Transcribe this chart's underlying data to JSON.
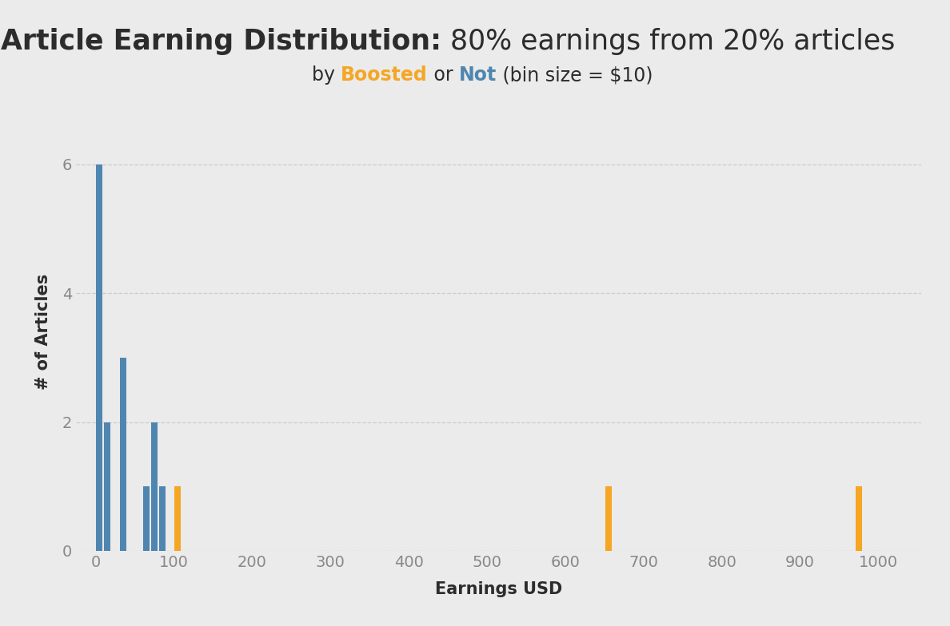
{
  "title_bold": "Article Earning Distribution:",
  "title_normal": " 80% earnings from 20% articles",
  "subtitle_prefix": "by ",
  "subtitle_boosted": "Boosted",
  "subtitle_or": " or ",
  "subtitle_not": "Not",
  "subtitle_suffix": " (bin size = $10)",
  "xlabel": "Earnings USD",
  "ylabel": "# of Articles",
  "background_color": "#ebebeb",
  "bar_color_blue": "#4f86b0",
  "bar_color_orange": "#f5a623",
  "text_color": "#2c2c2c",
  "grid_color": "#cccccc",
  "blue_bars": [
    {
      "x": 0,
      "height": 6
    },
    {
      "x": 10,
      "height": 2
    },
    {
      "x": 30,
      "height": 3
    },
    {
      "x": 60,
      "height": 1
    },
    {
      "x": 70,
      "height": 2
    },
    {
      "x": 80,
      "height": 1
    }
  ],
  "orange_bars": [
    {
      "x": 100,
      "height": 1
    },
    {
      "x": 650,
      "height": 1
    },
    {
      "x": 970,
      "height": 1
    }
  ],
  "bin_size": 10,
  "xlim": [
    -25,
    1055
  ],
  "ylim": [
    0,
    6.8
  ],
  "xticks": [
    0,
    100,
    200,
    300,
    400,
    500,
    600,
    700,
    800,
    900,
    1000
  ],
  "yticks": [
    0,
    2,
    4,
    6
  ],
  "title_fontsize": 25,
  "subtitle_fontsize": 17,
  "axis_label_fontsize": 15,
  "tick_fontsize": 14
}
